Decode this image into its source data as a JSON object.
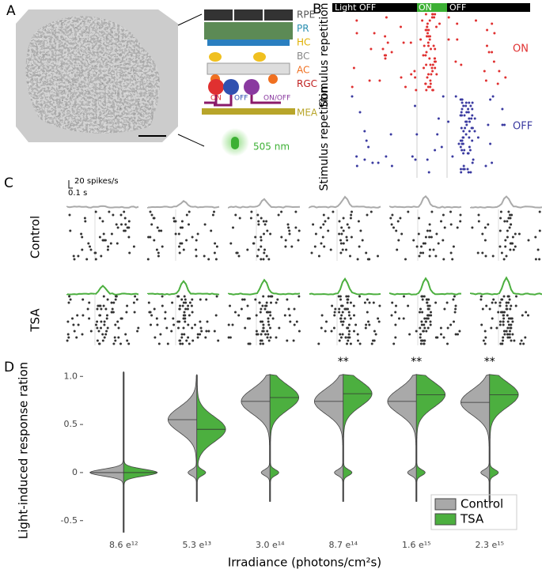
{
  "panel_a": {
    "label": "A",
    "layers": [
      "RPE",
      "PR",
      "HC",
      "BC",
      "AC",
      "RGC"
    ],
    "cells": [
      "ON",
      "OFF",
      "ON/OFF"
    ],
    "mea": "MEA",
    "light": "505 nm"
  },
  "panel_b": {
    "label": "B",
    "bar": [
      "Light OFF",
      "ON",
      "OFF"
    ],
    "rows": [
      "Stimulus repetition",
      "Stimulus repetition"
    ],
    "responses": [
      "ON",
      "OFF"
    ]
  },
  "panel_c": {
    "label": "C",
    "scale_rate": "20 spikes/s",
    "scale_time": "0.1 s",
    "conditions": [
      "Control",
      "TSA"
    ]
  },
  "panel_d": {
    "label": "D"
  },
  "chart_data": {
    "type": "violin",
    "ylabel": "Light-induced response ration",
    "xlabel": "Irradiance (photons/cm²s)",
    "categories": [
      "8.6 e¹²",
      "5.3 e¹³",
      "3.0 e¹⁴",
      "8.7 e¹⁴",
      "1.6 e¹⁵",
      "2.3 e¹⁵"
    ],
    "significance": [
      null,
      null,
      null,
      "**",
      "**",
      "**"
    ],
    "series": [
      {
        "name": "Control",
        "color": "#a9a9a9",
        "values": [
          0,
          0.55,
          0.74,
          0.74,
          0.74,
          0.73
        ]
      },
      {
        "name": "TSA",
        "color": "#4caf3f",
        "values": [
          0,
          0.45,
          0.78,
          0.82,
          0.81,
          0.81
        ]
      }
    ],
    "ylim": [
      -0.65,
      1.15
    ],
    "yticks": [
      -0.5,
      0,
      0.5,
      {
        "value": 1.0,
        "label": "1.0"
      }
    ],
    "legend": "lower right"
  }
}
